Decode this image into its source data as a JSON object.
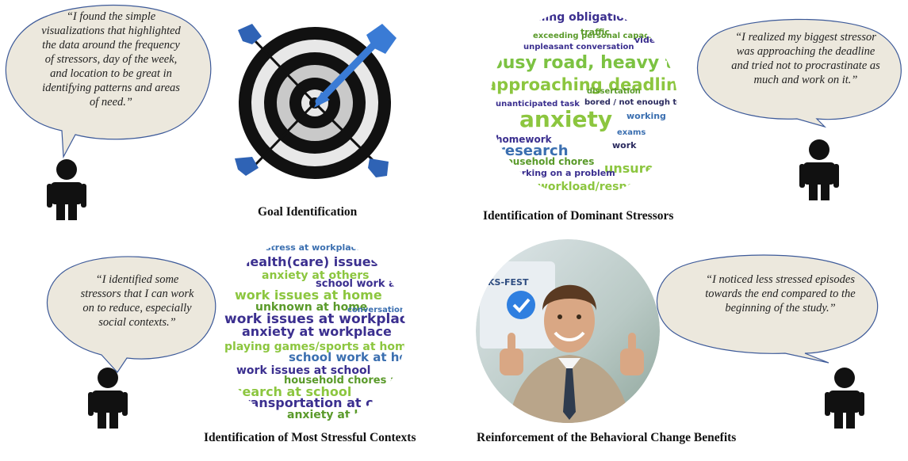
{
  "quotes": {
    "patterns": "“I found the simple visualizations that highlighted the data around the frequency of stressors, day of the week, and location to be great in identifying patterns and areas of need.”",
    "deadline": "“I realized my biggest stressor was approaching the deadline and tried not to procrastinate as much and work on it.”",
    "social": "“I identified some stressors that I can work on to reduce, especially social contexts.”",
    "less_stress": "“I noticed less stressed episodes towards the end compared to the beginning of the study.”"
  },
  "captions": {
    "goal": "Goal Identification",
    "stressors": "Identification of Dominant Stressors",
    "contexts": "Identification of  Most Stressful Contexts",
    "reinforcement": "Reinforcement of the Behavioral Change Benefits"
  },
  "stressor_cloud": [
    {
      "text": "coming obligation/resp",
      "color": "#3b2f8f"
    },
    {
      "text": "exceeding personal capacity",
      "color": "#5a9a2a"
    },
    {
      "text": "unpleasant conversation",
      "color": "#3b2f8f"
    },
    {
      "text": "busy road, heavy traffic",
      "color": "#7cc242"
    },
    {
      "text": "approaching deadline",
      "color": "#8cc63f"
    },
    {
      "text": "unanticipated task",
      "color": "#3b2f8f"
    },
    {
      "text": "bored / not enough to do",
      "color": "#2b2b5f"
    },
    {
      "text": "dissertation",
      "color": "#5a9a2a"
    },
    {
      "text": "anxiety",
      "color": "#8cc63f"
    },
    {
      "text": "working",
      "color": "#3b6fb0"
    },
    {
      "text": "homework",
      "color": "#3b2f8f"
    },
    {
      "text": "research",
      "color": "#3b6fb0"
    },
    {
      "text": "work",
      "color": "#2b2b5f"
    },
    {
      "text": "household chores",
      "color": "#5a9a2a"
    },
    {
      "text": "unsure",
      "color": "#8cc63f"
    },
    {
      "text": "working on a problem",
      "color": "#3b2f8f"
    },
    {
      "text": "workload/respo",
      "color": "#8cc63f"
    },
    {
      "text": "traffic",
      "color": "#5a9a2a"
    },
    {
      "text": "video g",
      "color": "#3b2f8f"
    },
    {
      "text": "exams",
      "color": "#3b6fb0"
    }
  ],
  "context_cloud": [
    {
      "text": "stress at workplace",
      "color": "#3b6fb0"
    },
    {
      "text": "health(care) issues at home",
      "color": "#3b2f8f"
    },
    {
      "text": "anxiety at others",
      "color": "#8cc63f"
    },
    {
      "text": "school work at school",
      "color": "#3b2f8f"
    },
    {
      "text": "work issues at home",
      "color": "#8cc63f"
    },
    {
      "text": "unknown at home",
      "color": "#5a9a2a"
    },
    {
      "text": "work issues at workplace",
      "color": "#3b2f8f"
    },
    {
      "text": "anxiety at workplace",
      "color": "#3b2f8f"
    },
    {
      "text": "playing games/sports at home",
      "color": "#8cc63f"
    },
    {
      "text": "school work at home",
      "color": "#3b6fb0"
    },
    {
      "text": "work issues at school",
      "color": "#3b2f8f"
    },
    {
      "text": "household chores at home",
      "color": "#5a9a2a"
    },
    {
      "text": "search at school",
      "color": "#8cc63f"
    },
    {
      "text": "transportation at commute",
      "color": "#3b2f8f"
    },
    {
      "text": "anxiety at home",
      "color": "#5a9a2a"
    },
    {
      "text": "conversation at home",
      "color": "#3b6fb0"
    }
  ],
  "photo_sign_text": "KS-FEST",
  "colors": {
    "bubble_fill": "#ece8dd",
    "bubble_stroke": "#3d5a99",
    "person": "#111111",
    "arrow_blue": "#3a7bd5"
  }
}
